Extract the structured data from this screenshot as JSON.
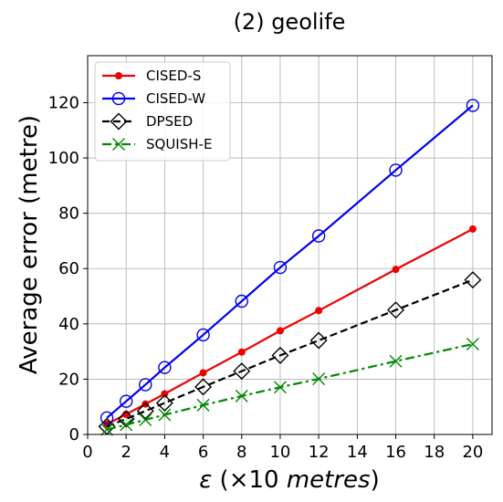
{
  "chart_data": {
    "type": "line",
    "title": "(2) geolife",
    "xlabel_symbol": "ε",
    "xlabel_rest": " (×10 ",
    "xlabel_unit": "metres",
    "xlabel_close": ")",
    "ylabel": "Average error (metre)",
    "xlim": [
      0,
      21
    ],
    "ylim": [
      0,
      137
    ],
    "xticks": [
      0,
      2,
      4,
      6,
      8,
      10,
      12,
      14,
      16,
      18,
      20
    ],
    "yticks": [
      0,
      20,
      40,
      60,
      80,
      100,
      120
    ],
    "grid": true,
    "legend_position": "top-left",
    "x": [
      1,
      2,
      3,
      4,
      6,
      8,
      10,
      12,
      16,
      20
    ],
    "series": [
      {
        "name": "CISED-S",
        "color": "#ee0000",
        "marker": "dot",
        "dash": "solid",
        "values": [
          3.7,
          7.3,
          11.0,
          14.7,
          22.3,
          29.8,
          37.5,
          44.8,
          59.7,
          74.3
        ]
      },
      {
        "name": "CISED-W",
        "color": "#0000ee",
        "marker": "circle",
        "dash": "solid",
        "values": [
          6.0,
          12.0,
          18.0,
          24.2,
          36.0,
          48.2,
          60.4,
          71.8,
          95.6,
          119.0
        ]
      },
      {
        "name": "DPSED",
        "color": "#000000",
        "marker": "diamond",
        "dash": "dashed",
        "values": [
          2.9,
          5.6,
          8.5,
          11.4,
          17.2,
          22.9,
          28.6,
          34.0,
          45.0,
          55.9
        ]
      },
      {
        "name": "SQUISH-E",
        "color": "#008800",
        "marker": "x",
        "dash": "dashdot",
        "values": [
          1.8,
          3.5,
          5.3,
          7.1,
          10.6,
          13.9,
          17.1,
          20.1,
          26.5,
          32.7
        ]
      }
    ]
  }
}
